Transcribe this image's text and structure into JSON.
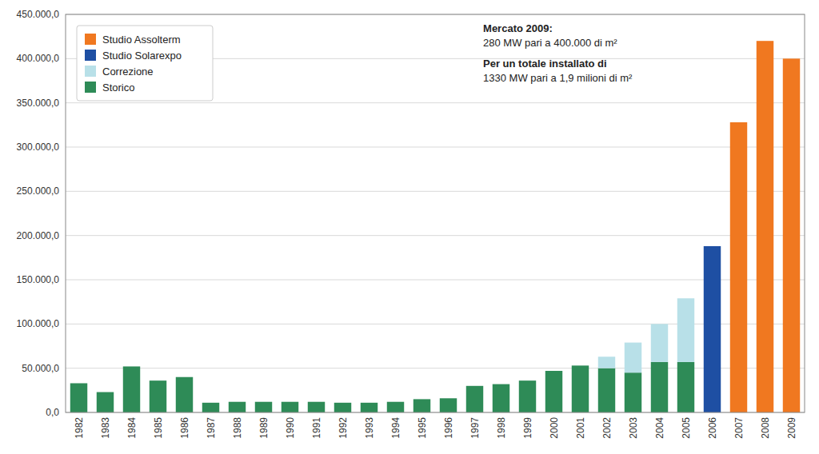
{
  "chart_data": {
    "type": "bar",
    "stacked": true,
    "categories": [
      "1982",
      "1983",
      "1984",
      "1985",
      "1986",
      "1987",
      "1988",
      "1989",
      "1990",
      "1991",
      "1992",
      "1993",
      "1994",
      "1995",
      "1996",
      "1997",
      "1998",
      "1999",
      "2000",
      "2001",
      "2002",
      "2003",
      "2004",
      "2005",
      "2006",
      "2007",
      "2008",
      "2009"
    ],
    "series": [
      {
        "name": "Storico",
        "color": "#2e8b57",
        "values": [
          33000,
          23000,
          52000,
          36000,
          40000,
          11000,
          12000,
          12000,
          12000,
          12000,
          11000,
          11000,
          12000,
          15000,
          16000,
          30000,
          32000,
          36000,
          47000,
          53000,
          50000,
          45000,
          57000,
          57000,
          0,
          0,
          0,
          0
        ]
      },
      {
        "name": "Correzione",
        "color": "#b8e0e8",
        "values": [
          0,
          0,
          0,
          0,
          0,
          0,
          0,
          0,
          0,
          0,
          0,
          0,
          0,
          0,
          0,
          0,
          0,
          0,
          0,
          0,
          13000,
          34000,
          43000,
          72000,
          0,
          0,
          0,
          0
        ]
      },
      {
        "name": "Studio Solarexpo",
        "color": "#1e4fa3",
        "values": [
          0,
          0,
          0,
          0,
          0,
          0,
          0,
          0,
          0,
          0,
          0,
          0,
          0,
          0,
          0,
          0,
          0,
          0,
          0,
          0,
          0,
          0,
          0,
          0,
          188000,
          0,
          0,
          0
        ]
      },
      {
        "name": "Studio Assolterm",
        "color": "#f07820",
        "values": [
          0,
          0,
          0,
          0,
          0,
          0,
          0,
          0,
          0,
          0,
          0,
          0,
          0,
          0,
          0,
          0,
          0,
          0,
          0,
          0,
          0,
          0,
          0,
          0,
          0,
          328000,
          420000,
          400000
        ]
      }
    ],
    "ylim": [
      0,
      450000
    ],
    "yticks": [
      {
        "value": 0,
        "label": "0,0"
      },
      {
        "value": 50000,
        "label": "50.000,0"
      },
      {
        "value": 100000,
        "label": "100.000,0"
      },
      {
        "value": 150000,
        "label": "150.000,0"
      },
      {
        "value": 200000,
        "label": "200.000,0"
      },
      {
        "value": 250000,
        "label": "250.000,0"
      },
      {
        "value": 300000,
        "label": "300.000,0"
      },
      {
        "value": 350000,
        "label": "350.000,0"
      },
      {
        "value": 400000,
        "label": "400.000,0"
      },
      {
        "value": 450000,
        "label": "450.000,0"
      }
    ],
    "annotations": [
      "Mercato 2009:",
      "280 MW pari a 400.000 di m²",
      "Per un totale installato di",
      "1330 MW pari a 1,9 milioni di m²"
    ],
    "grid": true,
    "legend": "upper left"
  }
}
